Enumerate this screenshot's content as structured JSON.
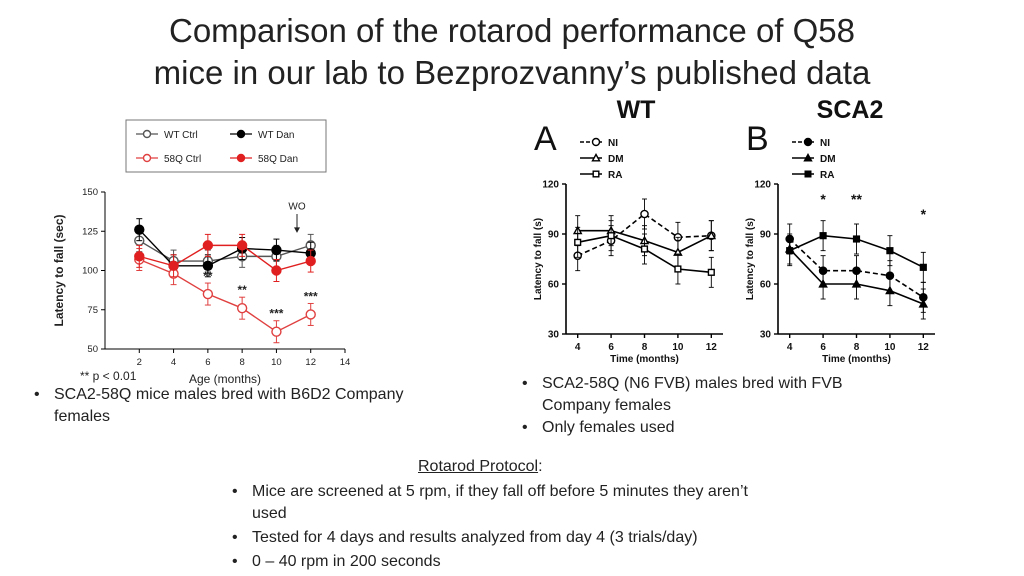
{
  "slide": {
    "title_line1": "Comparison of the rotarod performance of Q58",
    "title_line2": "mice in our lab to Bezprozvanny’s published data",
    "left_note": "** p < 0.01",
    "left_bullets": [
      "SCA2-58Q mice males bred with B6D2 Company females"
    ],
    "right_bullets": [
      "SCA2-58Q (N6 FVB) males bred with FVB Company females",
      "Only females used"
    ],
    "protocol_title": "Rotarod Protocol",
    "protocol_colon": ":",
    "protocol_bullets": [
      "Mice are screened at 5 rpm, if they fall off before 5 minutes they aren’t used",
      "Tested for 4 days and results analyzed from day 4 (3 trials/day)",
      "0 – 40 rpm in 200 seconds"
    ],
    "bullet_glyph": "•"
  },
  "chart_data": [
    {
      "type": "line",
      "xlabel": "Age (months)",
      "ylabel": "Latency to fall (sec)",
      "xlim": [
        0,
        14
      ],
      "ylim": [
        50,
        150
      ],
      "xticks": [
        2,
        4,
        6,
        8,
        10,
        12,
        14
      ],
      "yticks": [
        50,
        75,
        100,
        125,
        150
      ],
      "annotation": "WO",
      "legend_position": "top",
      "series": [
        {
          "name": "WT Ctrl",
          "color": "#555555",
          "marker": "open-circle",
          "x": [
            2,
            4,
            6,
            8,
            10,
            12
          ],
          "y": [
            119,
            106,
            106,
            109,
            109,
            116
          ]
        },
        {
          "name": "WT Dan",
          "color": "#000000",
          "marker": "filled-circle",
          "x": [
            2,
            4,
            6,
            8,
            10,
            12
          ],
          "y": [
            126,
            103,
            103,
            114,
            113,
            111
          ]
        },
        {
          "name": "58Q Ctrl",
          "color": "#e04040",
          "marker": "open-circle",
          "x": [
            2,
            4,
            6,
            8,
            10,
            12
          ],
          "y": [
            107,
            98,
            85,
            76,
            61,
            72
          ]
        },
        {
          "name": "58Q Dan",
          "color": "#e02020",
          "marker": "filled-circle",
          "x": [
            2,
            4,
            6,
            8,
            10,
            12
          ],
          "y": [
            109,
            103,
            116,
            116,
            100,
            106
          ]
        }
      ],
      "significance": [
        {
          "x": 6,
          "y": 85,
          "label": "**"
        },
        {
          "x": 8,
          "y": 76,
          "label": "**"
        },
        {
          "x": 10,
          "y": 61,
          "label": "***"
        },
        {
          "x": 12,
          "y": 72,
          "label": "***"
        }
      ]
    },
    {
      "type": "line",
      "title": "WT",
      "panel": "A",
      "xlabel": "Time (months)",
      "ylabel": "Latency to fall (s)",
      "xlim": [
        3.3,
        12.7
      ],
      "ylim": [
        30,
        120
      ],
      "xticks": [
        4,
        6,
        8,
        10,
        12
      ],
      "yticks": [
        30,
        60,
        90,
        120
      ],
      "legend_position": "top-left",
      "series": [
        {
          "name": "NI",
          "marker": "open-circle",
          "dash": "dashed",
          "x": [
            4,
            6,
            8,
            10,
            12
          ],
          "y": [
            77,
            86,
            102,
            88,
            89
          ]
        },
        {
          "name": "DM",
          "marker": "open-triangle",
          "dash": "solid",
          "x": [
            4,
            6,
            8,
            10,
            12
          ],
          "y": [
            92,
            92,
            86,
            79,
            89
          ]
        },
        {
          "name": "RA",
          "marker": "open-square",
          "dash": "solid",
          "x": [
            4,
            6,
            8,
            10,
            12
          ],
          "y": [
            85,
            89,
            81,
            69,
            67
          ]
        }
      ]
    },
    {
      "type": "line",
      "title": "SCA2",
      "panel": "B",
      "xlabel": "Time (months)",
      "ylabel": "Latency to fall (s)",
      "xlim": [
        3.3,
        12.7
      ],
      "ylim": [
        30,
        120
      ],
      "xticks": [
        4,
        6,
        8,
        10,
        12
      ],
      "yticks": [
        30,
        60,
        90,
        120
      ],
      "legend_position": "top-left",
      "series": [
        {
          "name": "NI",
          "marker": "filled-circle",
          "dash": "dashed",
          "x": [
            4,
            6,
            8,
            10,
            12
          ],
          "y": [
            87,
            68,
            68,
            65,
            52
          ]
        },
        {
          "name": "DM",
          "marker": "filled-triangle",
          "dash": "solid",
          "x": [
            4,
            6,
            8,
            10,
            12
          ],
          "y": [
            81,
            60,
            60,
            56,
            48
          ]
        },
        {
          "name": "RA",
          "marker": "filled-square",
          "dash": "solid",
          "x": [
            4,
            6,
            8,
            10,
            12
          ],
          "y": [
            80,
            89,
            87,
            80,
            70
          ]
        }
      ],
      "significance": [
        {
          "x": 6,
          "label": "*"
        },
        {
          "x": 8,
          "label": "**"
        },
        {
          "x": 12,
          "label": "*"
        }
      ]
    }
  ]
}
